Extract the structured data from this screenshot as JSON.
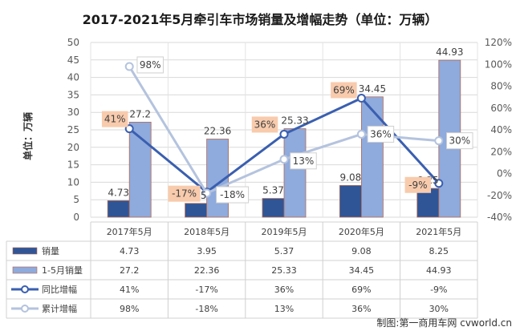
{
  "chart_data": {
    "type": "bar",
    "title": "2017-2021年5月牵引车市场销量及增幅走势（单位：万辆）",
    "ylabel": "单位：万辆",
    "categories": [
      "2017年5月",
      "2018年5月",
      "2019年5月",
      "2020年5月",
      "2021年5月"
    ],
    "ylim_left": [
      0,
      50
    ],
    "left_ticks": [
      "0",
      "5",
      "10",
      "15",
      "20",
      "25",
      "30",
      "35",
      "40",
      "45",
      "50"
    ],
    "ylim_right": [
      -40,
      120
    ],
    "right_ticks": [
      "-40%",
      "-20%",
      "0%",
      "20%",
      "40%",
      "60%",
      "80%",
      "100%",
      "120%"
    ],
    "grid": true,
    "series": [
      {
        "name": "销量",
        "kind": "bar",
        "axis": "left",
        "color": "#2F5597",
        "values": [
          4.73,
          3.95,
          5.37,
          9.08,
          8.25
        ],
        "labels": [
          "4.73",
          "3.95",
          "5.37",
          "9.08",
          "8.25"
        ]
      },
      {
        "name": "1-5月销量",
        "kind": "bar",
        "axis": "left",
        "color": "#8FAADC",
        "values": [
          27.2,
          22.36,
          25.33,
          34.45,
          44.93
        ],
        "labels": [
          "27.2",
          "22.36",
          "25.33",
          "34.45",
          "44.93"
        ]
      },
      {
        "name": "同比增幅",
        "kind": "line",
        "axis": "right",
        "color": "#3A5FB0",
        "values": [
          41,
          -17,
          36,
          69,
          -9
        ],
        "labels": [
          "41%",
          "-17%",
          "36%",
          "69%",
          "-9%"
        ]
      },
      {
        "name": "累计增幅",
        "kind": "line",
        "axis": "right",
        "color": "#B4C3DE",
        "values": [
          98,
          -18,
          13,
          36,
          30
        ],
        "labels": [
          "98%",
          "-18%",
          "13%",
          "36%",
          "30%"
        ]
      }
    ]
  },
  "credit": "制图:第一商用车网 cvworld.cn"
}
